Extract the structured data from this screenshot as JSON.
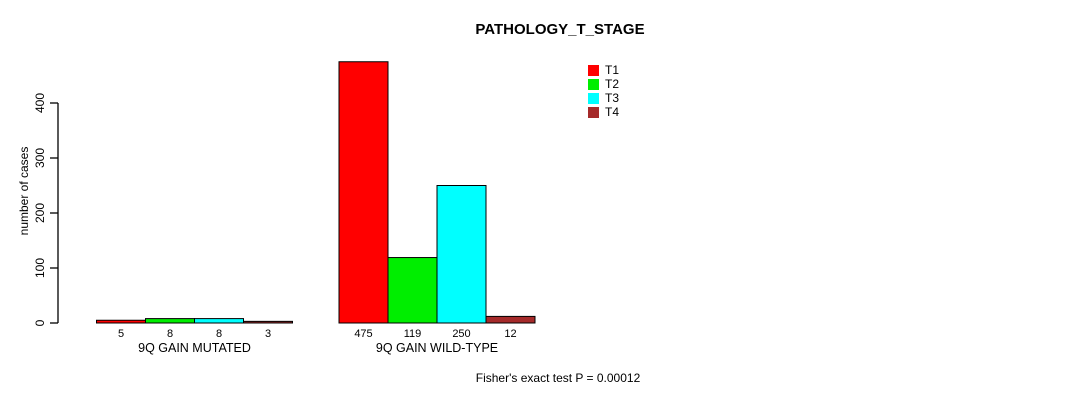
{
  "chart_data": {
    "type": "bar",
    "title": "PATHOLOGY_T_STAGE",
    "ylabel": "number of cases",
    "xlabel": "",
    "groups": [
      "9Q GAIN MUTATED",
      "9Q GAIN WILD-TYPE"
    ],
    "series": [
      {
        "name": "T1",
        "color": "#FF0000",
        "values": [
          5,
          475
        ]
      },
      {
        "name": "T2",
        "color": "#00EE00",
        "values": [
          8,
          119
        ]
      },
      {
        "name": "T3",
        "color": "#00FFFF",
        "values": [
          8,
          250
        ]
      },
      {
        "name": "T4",
        "color": "#A52A2A",
        "values": [
          3,
          12
        ]
      }
    ],
    "y_ticks": [
      0,
      100,
      200,
      300,
      400
    ],
    "ylim": [
      0,
      480
    ],
    "grid": false,
    "legend_position": "top-right",
    "bar_value_labels_shown": true,
    "annotation": "Fisher's exact test P = 0.00012",
    "axis_color": "#000000",
    "background_color": "#FFFFFF"
  }
}
